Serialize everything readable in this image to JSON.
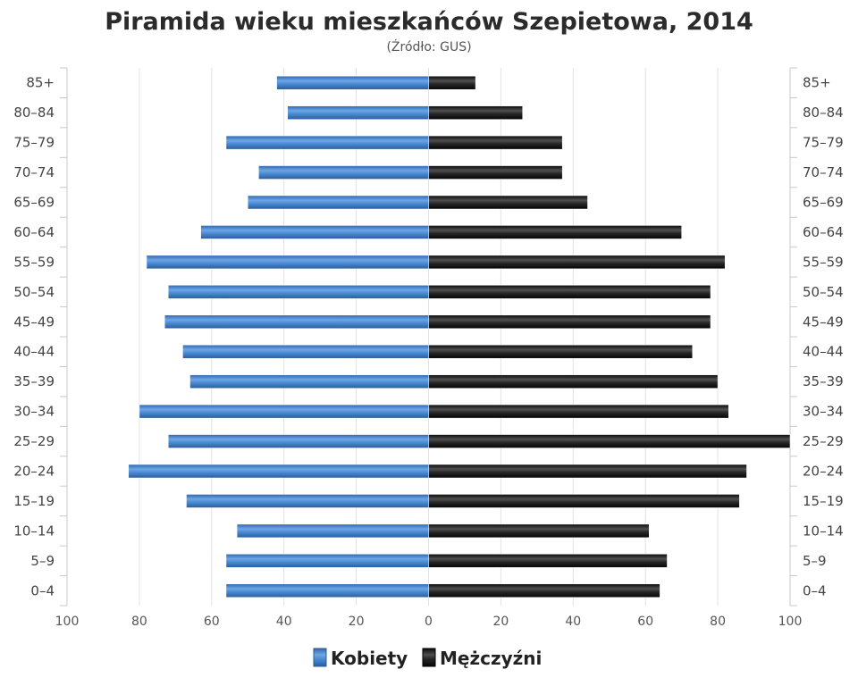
{
  "chart_data": {
    "type": "bar",
    "orientation": "horizontal",
    "layout": "population-pyramid",
    "title": "Piramida wieku mieszkańców Szepietowa, 2014",
    "subtitle": "(Źródło: GUS)",
    "categories": [
      "0–4",
      "5–9",
      "10–14",
      "15–19",
      "20–24",
      "25–29",
      "30–34",
      "35–39",
      "40–44",
      "45–49",
      "50–54",
      "55–59",
      "60–64",
      "65–69",
      "70–74",
      "75–79",
      "80–84",
      "85+"
    ],
    "series": [
      {
        "name": "Kobiety",
        "side": "left",
        "color": "#3b78c2",
        "values": [
          56,
          56,
          53,
          67,
          83,
          72,
          80,
          66,
          68,
          73,
          72,
          78,
          63,
          50,
          47,
          56,
          39,
          42
        ]
      },
      {
        "name": "Mężczyźni",
        "side": "right",
        "color": "#1c1c1c",
        "values": [
          64,
          66,
          61,
          86,
          88,
          100,
          83,
          80,
          73,
          78,
          78,
          82,
          70,
          44,
          37,
          37,
          26,
          13
        ]
      }
    ],
    "x_ticks": [
      "100",
      "80",
      "60",
      "40",
      "20",
      "0",
      "20",
      "40",
      "60",
      "80",
      "100"
    ],
    "xlim": [
      -100,
      100
    ],
    "grid": true,
    "legend_position": "bottom"
  }
}
